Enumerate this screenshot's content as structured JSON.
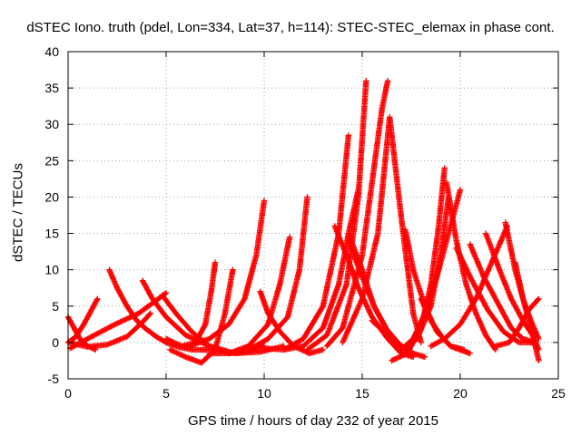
{
  "chart_data": {
    "type": "scatter",
    "title": "dSTEC Iono. truth (pdel, Lon=334, Lat=37, h=114): STEC-STEC_elemax in phase cont.",
    "xlabel": "GPS time / hours of day 232 of year 2015",
    "ylabel": "dSTEC  / TECUs",
    "xlim": [
      0,
      25
    ],
    "ylim": [
      -5,
      40
    ],
    "xticks": [
      "0",
      "5",
      "10",
      "15",
      "20",
      "25"
    ],
    "yticks": [
      "-5",
      "0",
      "5",
      "10",
      "15",
      "20",
      "25",
      "30",
      "35",
      "40"
    ],
    "grid": true,
    "marker": "plus",
    "color": "#ff0000",
    "series": [
      {
        "x": [
          0.0,
          0.3,
          0.6,
          1.0,
          1.4
        ],
        "y": [
          3.5,
          2.0,
          0.5,
          -0.5,
          -1.0
        ]
      },
      {
        "x": [
          0.0,
          0.4,
          0.8,
          1.2,
          1.5
        ],
        "y": [
          0.0,
          0.8,
          2.5,
          4.5,
          6.0
        ]
      },
      {
        "x": [
          0.0,
          1.0,
          2.0,
          3.0,
          3.8,
          4.2
        ],
        "y": [
          0.0,
          -0.6,
          -0.3,
          0.8,
          2.8,
          4.0
        ]
      },
      {
        "x": [
          0.1,
          1.2,
          2.4,
          3.6,
          4.6,
          5.0
        ],
        "y": [
          -0.8,
          0.8,
          2.5,
          4.0,
          6.0,
          6.8
        ]
      },
      {
        "x": [
          2.1,
          2.5,
          3.0,
          3.5,
          4.0,
          4.5,
          5.0,
          5.6,
          6.3,
          7.0,
          7.6
        ],
        "y": [
          10.0,
          7.5,
          5.0,
          3.0,
          1.8,
          0.8,
          0.0,
          -0.6,
          -1.0,
          -1.0,
          -0.8
        ]
      },
      {
        "x": [
          3.8,
          4.3,
          5.0,
          6.0,
          7.2,
          8.5,
          9.8,
          11.0
        ],
        "y": [
          8.5,
          6.0,
          3.5,
          1.0,
          -0.5,
          -1.5,
          -1.3,
          -0.5
        ]
      },
      {
        "x": [
          4.8,
          5.5,
          6.3,
          7.2,
          8.2,
          9.2,
          10.0
        ],
        "y": [
          6.5,
          4.0,
          1.5,
          -0.5,
          -1.5,
          -1.2,
          -0.5
        ]
      },
      {
        "x": [
          5.0,
          5.8,
          6.5,
          7.0,
          7.3,
          7.5
        ],
        "y": [
          0.5,
          -0.5,
          0.0,
          2.5,
          7.0,
          11.0
        ]
      },
      {
        "x": [
          5.2,
          6.0,
          6.8,
          7.5,
          8.0,
          8.4
        ],
        "y": [
          -1.0,
          -2.0,
          -2.8,
          -1.0,
          4.0,
          10.0
        ]
      },
      {
        "x": [
          6.2,
          7.2,
          8.2,
          9.0,
          9.6,
          10.0
        ],
        "y": [
          -0.5,
          0.5,
          2.5,
          6.0,
          12.0,
          19.5
        ]
      },
      {
        "x": [
          7.2,
          8.2,
          9.2,
          10.2,
          10.8,
          11.3
        ],
        "y": [
          -1.5,
          -1.5,
          -0.5,
          2.5,
          8.0,
          14.5
        ]
      },
      {
        "x": [
          8.2,
          9.2,
          10.2,
          11.2,
          11.8,
          12.2
        ],
        "y": [
          -1.5,
          -1.0,
          0.5,
          3.5,
          10.0,
          20.0
        ]
      },
      {
        "x": [
          9.8,
          10.2,
          10.8,
          11.5,
          12.3,
          13.0
        ],
        "y": [
          7.0,
          4.0,
          1.5,
          -0.5,
          -1.5,
          -1.0
        ]
      },
      {
        "x": [
          10.0,
          11.0,
          12.0,
          13.0,
          13.8,
          14.3
        ],
        "y": [
          -0.8,
          -1.0,
          0.5,
          5.0,
          15.0,
          28.5
        ]
      },
      {
        "x": [
          11.0,
          12.0,
          13.0,
          13.8,
          14.3,
          14.8
        ],
        "y": [
          -1.0,
          -0.5,
          2.0,
          8.0,
          15.0,
          21.0
        ]
      },
      {
        "x": [
          12.2,
          13.2,
          14.2,
          14.8,
          15.2
        ],
        "y": [
          -1.0,
          1.0,
          8.0,
          20.0,
          36.0
        ]
      },
      {
        "x": [
          13.6,
          14.2,
          14.8,
          15.5,
          16.3,
          17.0,
          17.6
        ],
        "y": [
          16.0,
          12.0,
          7.5,
          3.5,
          0.5,
          -1.5,
          -2.0
        ]
      },
      {
        "x": [
          14.3,
          15.0,
          15.6,
          16.2,
          16.8,
          17.2
        ],
        "y": [
          14.0,
          9.0,
          5.0,
          2.0,
          0.0,
          -1.0
        ]
      },
      {
        "x": [
          13.2,
          14.0,
          15.0,
          15.6,
          16.0,
          16.3
        ],
        "y": [
          -0.5,
          2.0,
          12.0,
          24.0,
          32.0,
          36.0
        ]
      },
      {
        "x": [
          14.0,
          15.0,
          15.8,
          16.4,
          17.0,
          17.6,
          18.0
        ],
        "y": [
          0.0,
          6.0,
          15.0,
          31.0,
          17.0,
          4.0,
          0.0
        ]
      },
      {
        "x": [
          14.3,
          15.0,
          15.6,
          16.3,
          17.0,
          17.6,
          18.2
        ],
        "y": [
          15.0,
          10.0,
          5.0,
          1.5,
          -0.5,
          -1.5,
          -2.0
        ]
      },
      {
        "x": [
          15.5,
          16.3,
          17.0,
          17.8,
          18.5,
          19.0,
          19.4
        ],
        "y": [
          3.0,
          1.0,
          -1.0,
          0.5,
          5.0,
          12.0,
          20.0
        ]
      },
      {
        "x": [
          16.5,
          17.3,
          18.0,
          18.5,
          18.9,
          19.2
        ],
        "y": [
          -2.5,
          -1.5,
          2.0,
          8.0,
          16.0,
          24.0
        ]
      },
      {
        "x": [
          17.0,
          17.6,
          18.2,
          18.8,
          19.4,
          20.0
        ],
        "y": [
          -1.0,
          0.5,
          4.0,
          9.0,
          15.0,
          21.0
        ]
      },
      {
        "x": [
          17.2,
          17.6,
          18.2,
          18.8,
          19.5,
          20.2
        ],
        "y": [
          15.5,
          10.0,
          5.0,
          1.5,
          -0.5,
          -1.0
        ]
      },
      {
        "x": [
          18.0,
          18.5,
          19.0,
          19.5,
          20.0,
          20.5
        ],
        "y": [
          6.0,
          3.0,
          1.0,
          -0.5,
          -1.0,
          -1.5
        ]
      },
      {
        "x": [
          19.3,
          19.8,
          20.3,
          20.8,
          21.3,
          21.8
        ],
        "y": [
          22.0,
          14.0,
          8.0,
          4.0,
          1.0,
          -1.0
        ]
      },
      {
        "x": [
          18.5,
          19.2,
          20.0,
          20.8,
          21.6,
          22.4
        ],
        "y": [
          -0.5,
          0.5,
          2.5,
          6.0,
          11.0,
          16.0
        ]
      },
      {
        "x": [
          19.8,
          20.6,
          21.4,
          22.2,
          23.0,
          23.8
        ],
        "y": [
          13.0,
          8.5,
          4.5,
          1.5,
          0.0,
          0.0
        ]
      },
      {
        "x": [
          20.5,
          21.2,
          22.0,
          22.6,
          23.2,
          23.8
        ],
        "y": [
          13.5,
          9.0,
          5.0,
          2.0,
          0.5,
          0.0
        ]
      },
      {
        "x": [
          21.3,
          22.0,
          22.6,
          23.2,
          23.8,
          24.0
        ],
        "y": [
          15.0,
          10.0,
          6.0,
          3.0,
          0.5,
          -1.0
        ]
      },
      {
        "x": [
          22.3,
          22.8,
          23.3,
          23.7,
          24.0
        ],
        "y": [
          16.5,
          10.0,
          5.0,
          1.0,
          -2.5
        ]
      },
      {
        "x": [
          21.8,
          22.5,
          23.0,
          23.5,
          24.0
        ],
        "y": [
          -0.5,
          0.0,
          2.0,
          4.5,
          6.0
        ]
      },
      {
        "x": [
          22.8,
          23.2,
          23.6,
          24.0
        ],
        "y": [
          11.0,
          6.0,
          3.0,
          0.5
        ]
      },
      {
        "x": [
          16.8,
          17.2,
          17.6,
          18.0
        ],
        "y": [
          -1.0,
          -0.5,
          0.5,
          2.0
        ]
      }
    ]
  }
}
